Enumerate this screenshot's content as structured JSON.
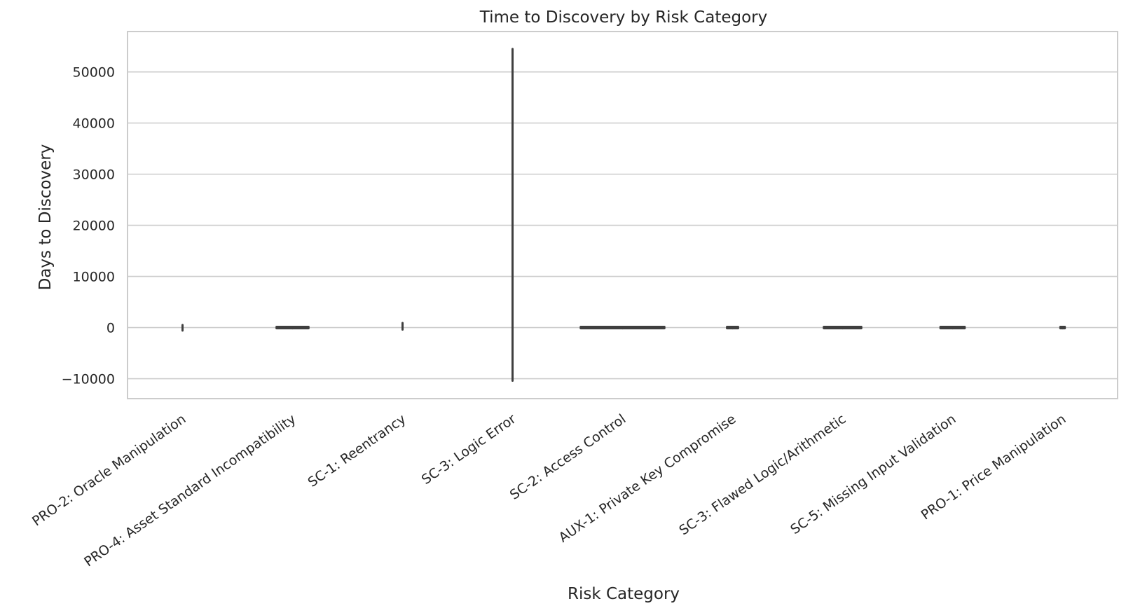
{
  "chart_data": {
    "type": "violin",
    "title": "Time to Discovery by Risk Category",
    "xlabel": "Risk Category",
    "ylabel": "Days to Discovery",
    "ylim": [
      -13900,
      57900
    ],
    "yticks": [
      -10000,
      0,
      10000,
      20000,
      30000,
      40000,
      50000
    ],
    "grid": "horizontal",
    "categories": [
      "PRO-2: Oracle Manipulation",
      "PRO-4: Asset Standard Incompatibility",
      "SC-1: Reentrancy",
      "SC-3: Logic Error",
      "SC-2: Access Control",
      "AUX-1: Private Key Compromise",
      "SC-3: Flawed Logic/Arithmetic",
      "SC-5: Missing Input Validation",
      "PRO-1: Price Manipulation"
    ],
    "series": [
      {
        "category": "PRO-2: Oracle Manipulation",
        "min": -600,
        "max": 500,
        "spread": 0.015
      },
      {
        "category": "PRO-4: Asset Standard Incompatibility",
        "min": -150,
        "max": 150,
        "spread": 0.31
      },
      {
        "category": "SC-1: Reentrancy",
        "min": -400,
        "max": 900,
        "spread": 0.015
      },
      {
        "category": "SC-3: Logic Error",
        "min": -10400,
        "max": 54500,
        "spread": 0.015
      },
      {
        "category": "SC-2: Access Control",
        "min": -150,
        "max": 150,
        "spread": 0.78
      },
      {
        "category": "AUX-1: Private Key Compromise",
        "min": -150,
        "max": 150,
        "spread": 0.12
      },
      {
        "category": "SC-3: Flawed Logic/Arithmetic",
        "min": -150,
        "max": 150,
        "spread": 0.36
      },
      {
        "category": "SC-5: Missing Input Validation",
        "min": -150,
        "max": 150,
        "spread": 0.24
      },
      {
        "category": "PRO-1: Price Manipulation",
        "min": -150,
        "max": 150,
        "spread": 0.06
      }
    ],
    "colors": {
      "mark": "#3f3f3f",
      "grid": "#cccccc",
      "text": "#262626"
    }
  }
}
